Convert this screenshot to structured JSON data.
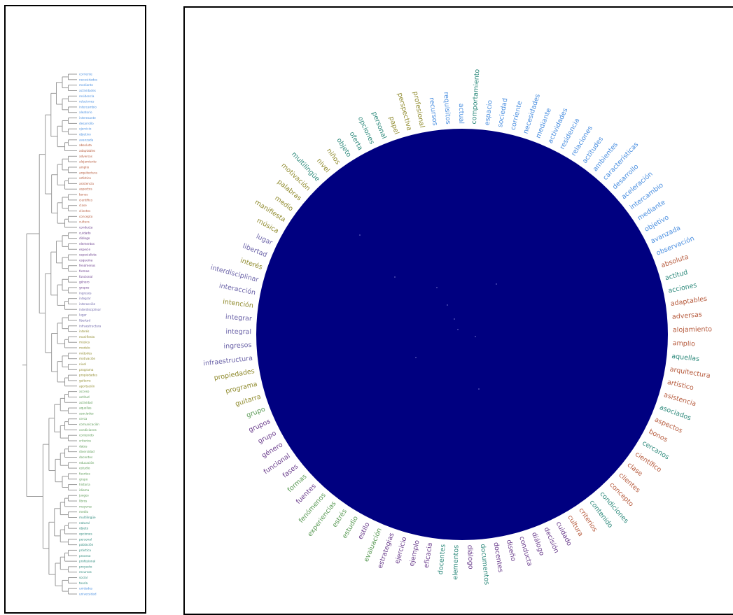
{
  "colors": {
    "blue": "#4a8fe0",
    "red": "#b65a3c",
    "teal": "#2e8a7c",
    "olive": "#8f8a2c",
    "purple": "#6a3d8c",
    "lavender": "#6b63a8",
    "green": "#5a9a55",
    "circle_fill": "#000080",
    "tree_line": "#9a9a9a",
    "frame": "#000000"
  },
  "dendrogram": {
    "leaves": [
      {
        "label": "corriente",
        "c": "blue"
      },
      {
        "label": "necesidades",
        "c": "blue"
      },
      {
        "label": "mediante",
        "c": "blue"
      },
      {
        "label": "actividades",
        "c": "blue"
      },
      {
        "label": "residencia",
        "c": "blue"
      },
      {
        "label": "relaciones",
        "c": "blue"
      },
      {
        "label": "intercambio",
        "c": "blue"
      },
      {
        "label": "aleatorio",
        "c": "blue"
      },
      {
        "label": "interesante",
        "c": "blue"
      },
      {
        "label": "desarrollo",
        "c": "blue"
      },
      {
        "label": "ejercicio",
        "c": "blue"
      },
      {
        "label": "objetivo",
        "c": "blue"
      },
      {
        "label": "avanzada",
        "c": "blue"
      },
      {
        "label": "absoluta",
        "c": "red"
      },
      {
        "label": "adaptables",
        "c": "red"
      },
      {
        "label": "adversas",
        "c": "red"
      },
      {
        "label": "alojamiento",
        "c": "red"
      },
      {
        "label": "amplio",
        "c": "red"
      },
      {
        "label": "arquitectura",
        "c": "red"
      },
      {
        "label": "artístico",
        "c": "red"
      },
      {
        "label": "asistencia",
        "c": "red"
      },
      {
        "label": "aspectos",
        "c": "red"
      },
      {
        "label": "bonos",
        "c": "red"
      },
      {
        "label": "científico",
        "c": "red"
      },
      {
        "label": "clase",
        "c": "red"
      },
      {
        "label": "clientes",
        "c": "red"
      },
      {
        "label": "concepto",
        "c": "red"
      },
      {
        "label": "cultura",
        "c": "red"
      },
      {
        "label": "conducta",
        "c": "purple"
      },
      {
        "label": "cuidado",
        "c": "purple"
      },
      {
        "label": "diálogo",
        "c": "purple"
      },
      {
        "label": "elementos",
        "c": "purple"
      },
      {
        "label": "especie",
        "c": "purple"
      },
      {
        "label": "especialista",
        "c": "purple"
      },
      {
        "label": "esquema",
        "c": "purple"
      },
      {
        "label": "fenómenos",
        "c": "purple"
      },
      {
        "label": "formas",
        "c": "purple"
      },
      {
        "label": "funcional",
        "c": "purple"
      },
      {
        "label": "género",
        "c": "purple"
      },
      {
        "label": "grupos",
        "c": "purple"
      },
      {
        "label": "ingresos",
        "c": "lavender"
      },
      {
        "label": "integrar",
        "c": "lavender"
      },
      {
        "label": "interacción",
        "c": "lavender"
      },
      {
        "label": "interdisciplinar",
        "c": "lavender"
      },
      {
        "label": "lugar",
        "c": "lavender"
      },
      {
        "label": "libertad",
        "c": "lavender"
      },
      {
        "label": "infraestructura",
        "c": "lavender"
      },
      {
        "label": "interés",
        "c": "olive"
      },
      {
        "label": "manifiesta",
        "c": "olive"
      },
      {
        "label": "música",
        "c": "olive"
      },
      {
        "label": "modelo",
        "c": "olive"
      },
      {
        "label": "métodos",
        "c": "olive"
      },
      {
        "label": "motivación",
        "c": "olive"
      },
      {
        "label": "nivel",
        "c": "olive"
      },
      {
        "label": "programa",
        "c": "olive"
      },
      {
        "label": "propiedades",
        "c": "olive"
      },
      {
        "label": "guitarra",
        "c": "olive"
      },
      {
        "label": "aportación",
        "c": "olive"
      },
      {
        "label": "acceso",
        "c": "green"
      },
      {
        "label": "actitud",
        "c": "green"
      },
      {
        "label": "actividad",
        "c": "green"
      },
      {
        "label": "aquellas",
        "c": "green"
      },
      {
        "label": "asociados",
        "c": "green"
      },
      {
        "label": "cerca",
        "c": "green"
      },
      {
        "label": "comunicación",
        "c": "green"
      },
      {
        "label": "condiciones",
        "c": "green"
      },
      {
        "label": "contenido",
        "c": "green"
      },
      {
        "label": "criterios",
        "c": "green"
      },
      {
        "label": "datos",
        "c": "green"
      },
      {
        "label": "diversidad",
        "c": "green"
      },
      {
        "label": "docentes",
        "c": "green"
      },
      {
        "label": "educación",
        "c": "green"
      },
      {
        "label": "estudio",
        "c": "green"
      },
      {
        "label": "fuentes",
        "c": "green"
      },
      {
        "label": "grupo",
        "c": "green"
      },
      {
        "label": "historia",
        "c": "green"
      },
      {
        "label": "idioma",
        "c": "green"
      },
      {
        "label": "juegos",
        "c": "green"
      },
      {
        "label": "libros",
        "c": "green"
      },
      {
        "label": "mayores",
        "c": "green"
      },
      {
        "label": "medio",
        "c": "green"
      },
      {
        "label": "multilingüe",
        "c": "teal"
      },
      {
        "label": "natural",
        "c": "teal"
      },
      {
        "label": "objeto",
        "c": "teal"
      },
      {
        "label": "opciones",
        "c": "teal"
      },
      {
        "label": "personal",
        "c": "teal"
      },
      {
        "label": "población",
        "c": "teal"
      },
      {
        "label": "práctica",
        "c": "teal"
      },
      {
        "label": "proceso",
        "c": "teal"
      },
      {
        "label": "profesional",
        "c": "teal"
      },
      {
        "label": "proyecto",
        "c": "teal"
      },
      {
        "label": "recursos",
        "c": "teal"
      },
      {
        "label": "social",
        "c": "teal"
      },
      {
        "label": "teoría",
        "c": "teal"
      },
      {
        "label": "unidades",
        "c": "blue"
      },
      {
        "label": "universidad",
        "c": "blue"
      }
    ]
  },
  "circle_labels": [
    {
      "t": "corriente",
      "c": "blue"
    },
    {
      "t": "necesidades",
      "c": "blue"
    },
    {
      "t": "mediante",
      "c": "blue"
    },
    {
      "t": "actividades",
      "c": "blue"
    },
    {
      "t": "residencia",
      "c": "blue"
    },
    {
      "t": "relaciones",
      "c": "blue"
    },
    {
      "t": "actitudes",
      "c": "blue"
    },
    {
      "t": "ambientes",
      "c": "blue"
    },
    {
      "t": "características",
      "c": "blue"
    },
    {
      "t": "desarrollo",
      "c": "blue"
    },
    {
      "t": "aceleración",
      "c": "blue"
    },
    {
      "t": "intercambio",
      "c": "blue"
    },
    {
      "t": "mediante",
      "c": "blue"
    },
    {
      "t": "objetivo",
      "c": "blue"
    },
    {
      "t": "avanzada",
      "c": "blue"
    },
    {
      "t": "observación",
      "c": "blue"
    },
    {
      "t": "absoluta",
      "c": "red"
    },
    {
      "t": "actitud",
      "c": "teal"
    },
    {
      "t": "acciones",
      "c": "teal"
    },
    {
      "t": "adaptables",
      "c": "red"
    },
    {
      "t": "adversas",
      "c": "red"
    },
    {
      "t": "alojamiento",
      "c": "red"
    },
    {
      "t": "amplio",
      "c": "red"
    },
    {
      "t": "aquellas",
      "c": "teal"
    },
    {
      "t": "arquitectura",
      "c": "red"
    },
    {
      "t": "artístico",
      "c": "red"
    },
    {
      "t": "asistencia",
      "c": "red"
    },
    {
      "t": "asociados",
      "c": "teal"
    },
    {
      "t": "aspectos",
      "c": "red"
    },
    {
      "t": "bonos",
      "c": "red"
    },
    {
      "t": "cercanos",
      "c": "teal"
    },
    {
      "t": "científico",
      "c": "red"
    },
    {
      "t": "clase",
      "c": "red"
    },
    {
      "t": "clientes",
      "c": "red"
    },
    {
      "t": "concepto",
      "c": "red"
    },
    {
      "t": "condiciones",
      "c": "teal"
    },
    {
      "t": "contenido",
      "c": "teal"
    },
    {
      "t": "criterios",
      "c": "red"
    },
    {
      "t": "cultura",
      "c": "red"
    },
    {
      "t": "cuidado",
      "c": "purple"
    },
    {
      "t": "decisión",
      "c": "purple"
    },
    {
      "t": "diálogo",
      "c": "purple"
    },
    {
      "t": "conducta",
      "c": "purple"
    },
    {
      "t": "diseño",
      "c": "purple"
    },
    {
      "t": "docentes",
      "c": "purple"
    },
    {
      "t": "documentos",
      "c": "teal"
    },
    {
      "t": "diálogo",
      "c": "purple"
    },
    {
      "t": "elementos",
      "c": "teal"
    },
    {
      "t": "docentes",
      "c": "teal"
    },
    {
      "t": "eficacia",
      "c": "purple"
    },
    {
      "t": "ejemplo",
      "c": "purple"
    },
    {
      "t": "ejercicio",
      "c": "purple"
    },
    {
      "t": "estrategias",
      "c": "purple"
    },
    {
      "t": "evaluación",
      "c": "green"
    },
    {
      "t": "estilo",
      "c": "purple"
    },
    {
      "t": "estudio",
      "c": "green"
    },
    {
      "t": "estrés",
      "c": "green"
    },
    {
      "t": "experiencias",
      "c": "green"
    },
    {
      "t": "fenómenos",
      "c": "green"
    },
    {
      "t": "fuentes",
      "c": "purple"
    },
    {
      "t": "formas",
      "c": "green"
    },
    {
      "t": "fases",
      "c": "purple"
    },
    {
      "t": "funcional",
      "c": "purple"
    },
    {
      "t": "género",
      "c": "purple"
    },
    {
      "t": "grupo",
      "c": "purple"
    },
    {
      "t": "grupos",
      "c": "purple"
    },
    {
      "t": "grupo",
      "c": "green"
    },
    {
      "t": "guitarra",
      "c": "olive"
    },
    {
      "t": "programa",
      "c": "olive"
    },
    {
      "t": "propiedades",
      "c": "olive"
    },
    {
      "t": "infraestructura",
      "c": "lavender"
    },
    {
      "t": "ingresos",
      "c": "lavender"
    },
    {
      "t": "integral",
      "c": "lavender"
    },
    {
      "t": "integrar",
      "c": "lavender"
    },
    {
      "t": "intención",
      "c": "olive"
    },
    {
      "t": "interacción",
      "c": "lavender"
    },
    {
      "t": "interdisciplinar",
      "c": "lavender"
    },
    {
      "t": "interés",
      "c": "olive"
    },
    {
      "t": "libertad",
      "c": "lavender"
    },
    {
      "t": "lugar",
      "c": "lavender"
    },
    {
      "t": "música",
      "c": "olive"
    },
    {
      "t": "manifiesta",
      "c": "olive"
    },
    {
      "t": "medio",
      "c": "olive"
    },
    {
      "t": "palabras",
      "c": "olive"
    },
    {
      "t": "motivación",
      "c": "olive"
    },
    {
      "t": "multilingüe",
      "c": "teal"
    },
    {
      "t": "nivel",
      "c": "olive"
    },
    {
      "t": "niños",
      "c": "olive"
    },
    {
      "t": "objeto",
      "c": "teal"
    },
    {
      "t": "oferta",
      "c": "teal"
    },
    {
      "t": "opciones",
      "c": "teal"
    },
    {
      "t": "personal",
      "c": "teal"
    },
    {
      "t": "papel",
      "c": "olive"
    },
    {
      "t": "perspectiva",
      "c": "olive"
    },
    {
      "t": "profesional",
      "c": "olive"
    },
    {
      "t": "recursos",
      "c": "blue"
    },
    {
      "t": "requisitos",
      "c": "blue"
    },
    {
      "t": "actual",
      "c": "blue"
    },
    {
      "t": "comportamiento",
      "c": "teal"
    },
    {
      "t": "espacio",
      "c": "blue"
    },
    {
      "t": "sociedad",
      "c": "blue"
    }
  ]
}
